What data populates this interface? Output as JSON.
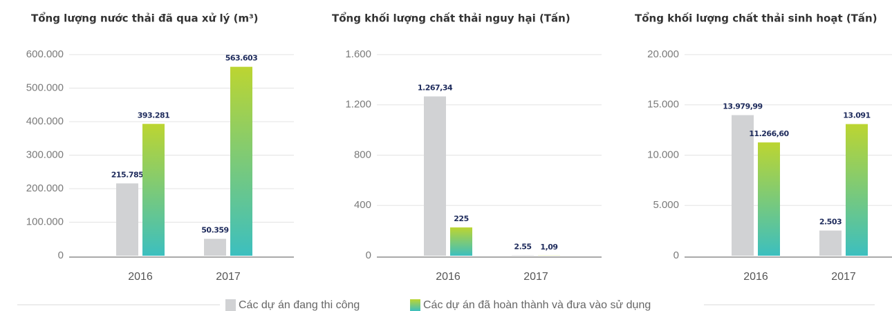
{
  "chart_data": [
    {
      "type": "bar",
      "title": "Tổng lượng nước thải đã qua xử lý (m³)",
      "categories": [
        "2016",
        "2017"
      ],
      "series": [
        {
          "color": "#d1d2d4",
          "values": [
            215785,
            50359
          ],
          "value_labels": [
            "215.785",
            "50.359"
          ]
        },
        {
          "color": [
            "#bcd531",
            "#3cbfbf"
          ],
          "values": [
            393281,
            563603
          ],
          "value_labels": [
            "393.281",
            "563.603"
          ]
        }
      ],
      "ylim": [
        0,
        600000
      ],
      "yticks": [
        0,
        {
          "value": 100000,
          "label": "100.000"
        },
        {
          "value": 200000,
          "label": "200.000"
        },
        {
          "value": 300000,
          "label": "300.000"
        },
        {
          "value": 400000,
          "label": "400.000"
        },
        {
          "value": 500000,
          "label": "500.000"
        },
        {
          "value": 600000,
          "label": "600.000"
        }
      ],
      "grid": true
    },
    {
      "type": "bar",
      "title": "Tổng khối lượng chất thải nguy hại (Tấn)",
      "categories": [
        "2016",
        "2017"
      ],
      "series": [
        {
          "color": "#d1d2d4",
          "values": [
            1267.34,
            2.55
          ],
          "value_labels": [
            "1.267,34",
            "2.55"
          ]
        },
        {
          "color": [
            "#bcd531",
            "#3cbfbf"
          ],
          "values": [
            225,
            1.09
          ],
          "value_labels": [
            "225",
            "1,09"
          ]
        }
      ],
      "ylim": [
        0,
        1600
      ],
      "yticks": [
        0,
        400,
        800,
        {
          "value": 1200,
          "label": "1.200"
        },
        {
          "value": 1600,
          "label": "1.600"
        }
      ],
      "grid": true
    },
    {
      "type": "bar",
      "title": "Tổng khối lượng chất thải sinh hoạt (Tấn)",
      "categories": [
        "2016",
        "2017"
      ],
      "series": [
        {
          "color": "#d1d2d4",
          "values": [
            13979.99,
            2503
          ],
          "value_labels": [
            "13.979,99",
            "2.503"
          ]
        },
        {
          "color": [
            "#bcd531",
            "#3cbfbf"
          ],
          "values": [
            11266.6,
            13091
          ],
          "value_labels": [
            "11.266,60",
            "13.091"
          ]
        }
      ],
      "ylim": [
        0,
        20000
      ],
      "yticks": [
        0,
        {
          "value": 5000,
          "label": "5.000"
        },
        {
          "value": 10000,
          "label": "10.000"
        },
        {
          "value": 15000,
          "label": "15.000"
        },
        {
          "value": 20000,
          "label": "20.000"
        }
      ],
      "grid": true
    }
  ],
  "legend": [
    "Các dự án đang thi công",
    "Các dự án đã hoàn thành và đưa vào sử dụng"
  ]
}
